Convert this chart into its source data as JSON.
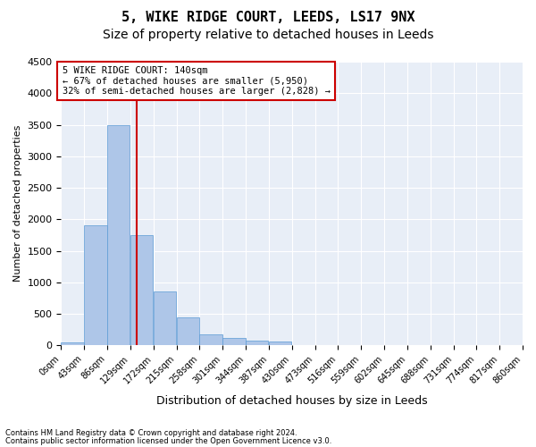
{
  "title": "5, WIKE RIDGE COURT, LEEDS, LS17 9NX",
  "subtitle": "Size of property relative to detached houses in Leeds",
  "xlabel": "Distribution of detached houses by size in Leeds",
  "ylabel": "Number of detached properties",
  "bar_values": [
    50,
    1900,
    3500,
    1750,
    850,
    450,
    175,
    110,
    75,
    60,
    0,
    0,
    0,
    0,
    0,
    0,
    0,
    0,
    0,
    0
  ],
  "bin_labels": [
    "0sqm",
    "43sqm",
    "86sqm",
    "129sqm",
    "172sqm",
    "215sqm",
    "258sqm",
    "301sqm",
    "344sqm",
    "387sqm",
    "430sqm",
    "473sqm",
    "516sqm",
    "559sqm",
    "602sqm",
    "645sqm",
    "688sqm",
    "731sqm",
    "774sqm",
    "817sqm",
    "860sqm"
  ],
  "bar_color": "#aec6e8",
  "bar_edge_color": "#5b9bd5",
  "background_color": "#e8eef7",
  "grid_color": "#ffffff",
  "vline_x": 140,
  "vline_color": "#cc0000",
  "annotation_text": "5 WIKE RIDGE COURT: 140sqm\n← 67% of detached houses are smaller (5,950)\n32% of semi-detached houses are larger (2,828) →",
  "annotation_box_color": "#cc0000",
  "ylim": [
    0,
    4500
  ],
  "yticks": [
    0,
    500,
    1000,
    1500,
    2000,
    2500,
    3000,
    3500,
    4000,
    4500
  ],
  "footer_line1": "Contains HM Land Registry data © Crown copyright and database right 2024.",
  "footer_line2": "Contains public sector information licensed under the Open Government Licence v3.0.",
  "title_fontsize": 11,
  "subtitle_fontsize": 10,
  "xlabel_fontsize": 9,
  "ylabel_fontsize": 8,
  "bin_width": 43,
  "n_bins": 20,
  "xmin": 0,
  "xmax": 860
}
